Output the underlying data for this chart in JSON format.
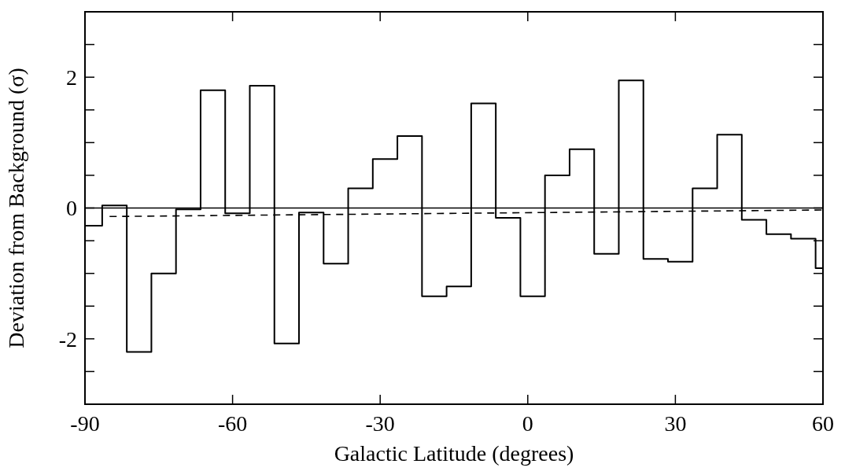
{
  "chart_data": {
    "type": "step",
    "xlabel": "Galactic Latitude (degrees)",
    "ylabel": "Deviation from Background (σ)",
    "xlim": [
      -90,
      60
    ],
    "xticks": [
      -90,
      -60,
      -30,
      0,
      30,
      60
    ],
    "ylim": [
      -3,
      3
    ],
    "yticks": [
      {
        "value": -3,
        "label": null
      },
      {
        "value": -2.5,
        "label": null
      },
      -2,
      {
        "value": -1.5,
        "label": null
      },
      {
        "value": -1,
        "label": null
      },
      {
        "value": -0.5,
        "label": null
      },
      0,
      {
        "value": 0.5,
        "label": null
      },
      {
        "value": 1,
        "label": null
      },
      {
        "value": 1.5,
        "label": null
      },
      2,
      {
        "value": 2.5,
        "label": null
      },
      {
        "value": 3,
        "label": null
      }
    ],
    "grid": false,
    "ref_lines": [
      {
        "axis": "y",
        "value": 0,
        "color": "#000000",
        "line_style": "solid"
      }
    ],
    "series": [
      {
        "color": "#000000",
        "line_style": "solid",
        "x": [
          -90,
          -86.5,
          -81.5,
          -76.5,
          -71.5,
          -66.5,
          -61.5,
          -56.5,
          -51.5,
          -46.5,
          -41.5,
          -36.5,
          -31.5,
          -26.5,
          -21.5,
          -16.5,
          -11.5,
          -6.5,
          -1.5,
          3.5,
          8.5,
          13.5,
          18.5,
          23.5,
          28.5,
          33.5,
          38.5,
          43.5,
          48.5,
          53.5,
          58.5,
          60
        ],
        "values": [
          -0.27,
          0.04,
          -2.2,
          -1.0,
          -0.02,
          1.8,
          -0.08,
          1.87,
          -2.07,
          -0.07,
          -0.85,
          0.3,
          0.75,
          1.1,
          -1.35,
          -1.2,
          1.6,
          -0.15,
          -1.35,
          0.5,
          0.9,
          -0.7,
          1.95,
          -0.78,
          -0.82,
          0.3,
          1.12,
          -0.18,
          -0.4,
          -0.47,
          -0.92,
          -0.92
        ]
      },
      {
        "type": "line",
        "color": "#000000",
        "line_style": "dashed",
        "x": [
          -85,
          60
        ],
        "values": [
          -0.13,
          -0.03
        ]
      }
    ]
  }
}
